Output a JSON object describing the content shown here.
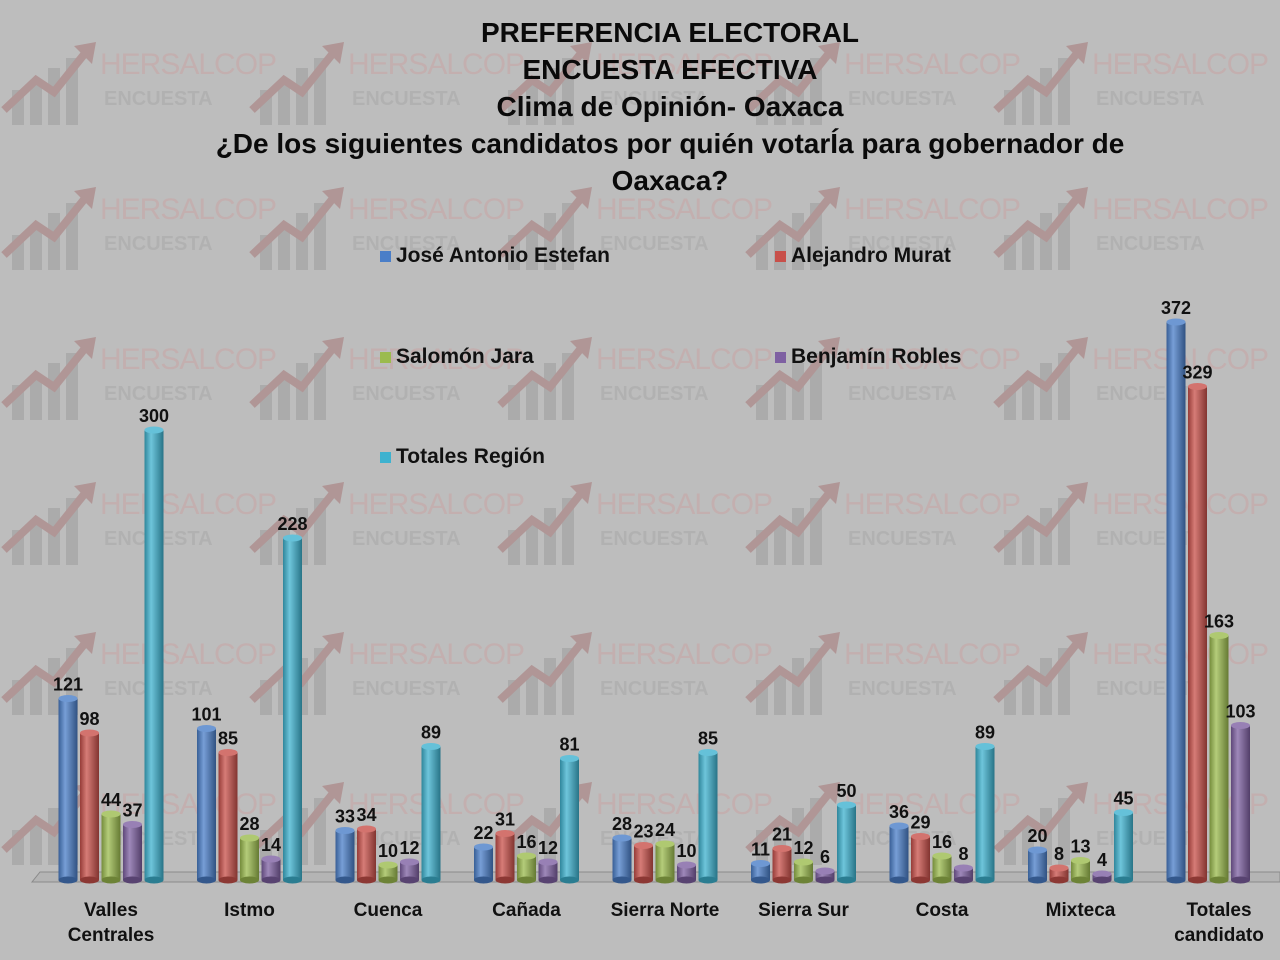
{
  "watermark": {
    "name": "HERSALCOP",
    "sub": "ENCUESTA"
  },
  "chart_data": {
    "type": "bar",
    "title_lines": [
      "PREFERENCIA ELECTORAL",
      "ENCUESTA EFECTIVA",
      "Clima de Opinión- Oaxaca",
      "¿De los siguientes candidatos por quién votarÍa para gobernador de",
      "Oaxaca?"
    ],
    "xlabel": "",
    "ylabel": "",
    "ylim": [
      0,
      380
    ],
    "grid": false,
    "legend_position": "top",
    "categories": [
      "Valles Centrales",
      "Istmo",
      "Cuenca",
      "Cañada",
      "Sierra Norte",
      "Sierra Sur",
      "Costa",
      "Mixteca",
      "Totales candidato"
    ],
    "category_label_lines": [
      [
        "Valles",
        "Centrales"
      ],
      [
        "Istmo"
      ],
      [
        "Cuenca"
      ],
      [
        "Cañada"
      ],
      [
        "Sierra Norte"
      ],
      [
        "Sierra Sur"
      ],
      [
        "Costa"
      ],
      [
        "Mixteca"
      ],
      [
        "Totales",
        "candidato"
      ]
    ],
    "series": [
      {
        "name": "José Antonio Estefan",
        "color": "#4a7ec8",
        "values": [
          121,
          101,
          33,
          22,
          28,
          11,
          36,
          20,
          372
        ]
      },
      {
        "name": "Alejandro Murat",
        "color": "#c8504a",
        "values": [
          98,
          85,
          34,
          31,
          23,
          21,
          29,
          8,
          329
        ]
      },
      {
        "name": "Salomón Jara",
        "color": "#9bbb4e",
        "values": [
          44,
          28,
          10,
          16,
          24,
          12,
          16,
          13,
          163
        ]
      },
      {
        "name": "Benjamín Robles",
        "color": "#7e60a2",
        "values": [
          37,
          14,
          12,
          12,
          10,
          6,
          8,
          4,
          103
        ]
      },
      {
        "name": "Totales Región",
        "color": "#3eb2cf",
        "values": [
          300,
          228,
          89,
          81,
          85,
          50,
          89,
          45,
          null
        ]
      }
    ]
  }
}
